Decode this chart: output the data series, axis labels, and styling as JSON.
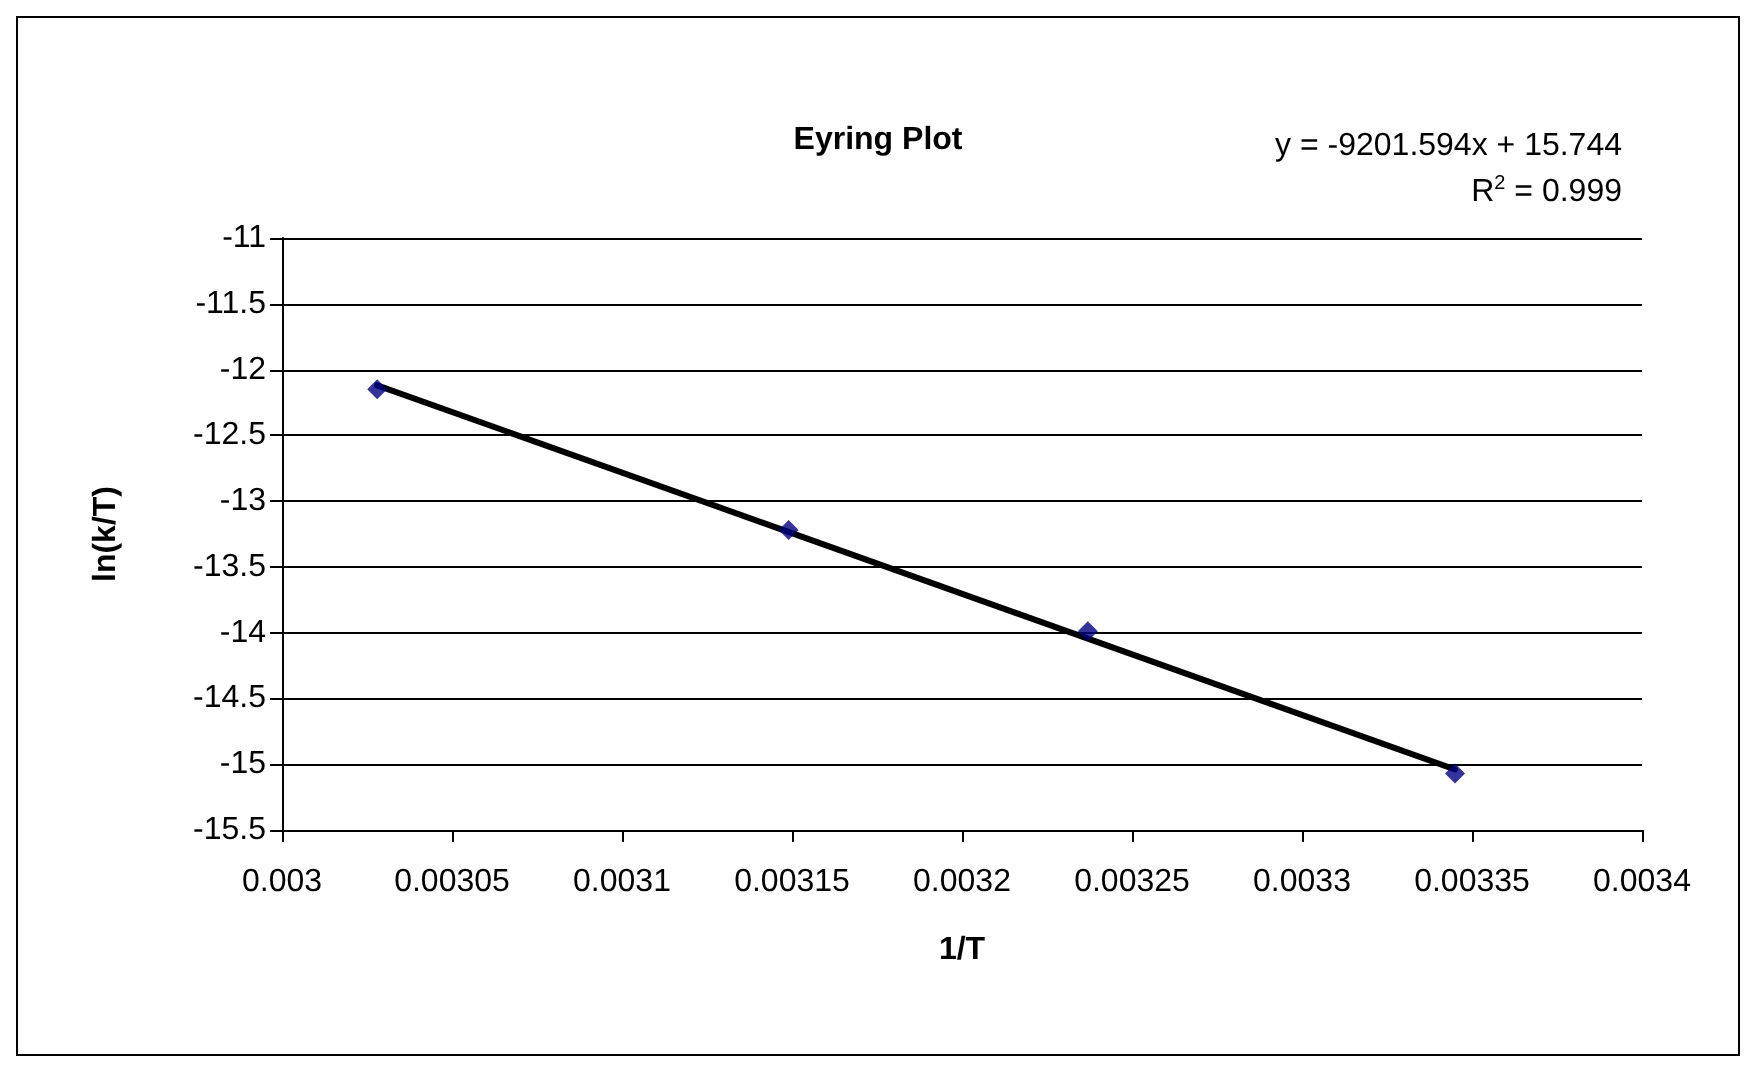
{
  "chart_data": {
    "type": "scatter",
    "title": "Eyring Plot",
    "xlabel": "1/T",
    "ylabel": "ln(k/T)",
    "annotations": [
      "y = -9201.594x + 15.744",
      "R$^{2}$ = 0.999"
    ],
    "series": [
      {
        "color": "#000080",
        "marker": "diamond",
        "x": [
          0.003028,
          0.003149,
          0.003237,
          0.003345
        ],
        "values": [
          -12.15,
          -13.22,
          -13.99,
          -15.07
        ]
      },
      {
        "type": "line",
        "color": "#000000",
        "marker": "none",
        "line_style": "solid",
        "x": [
          0.003028,
          0.003345
        ],
        "values": [
          -12.12,
          -15.04
        ]
      }
    ],
    "xlim": [
      0.003,
      0.0034
    ],
    "xticks": [
      0.003,
      0.00305,
      0.0031,
      0.00315,
      0.0032,
      0.00325,
      0.0033,
      0.00335,
      0.0034
    ],
    "ylim": [
      -15.5,
      -11
    ],
    "yticks": [
      -15.5,
      -15,
      -14.5,
      -14,
      -13.5,
      -13,
      -12.5,
      -12,
      -11.5,
      -11
    ],
    "grid": "y"
  }
}
